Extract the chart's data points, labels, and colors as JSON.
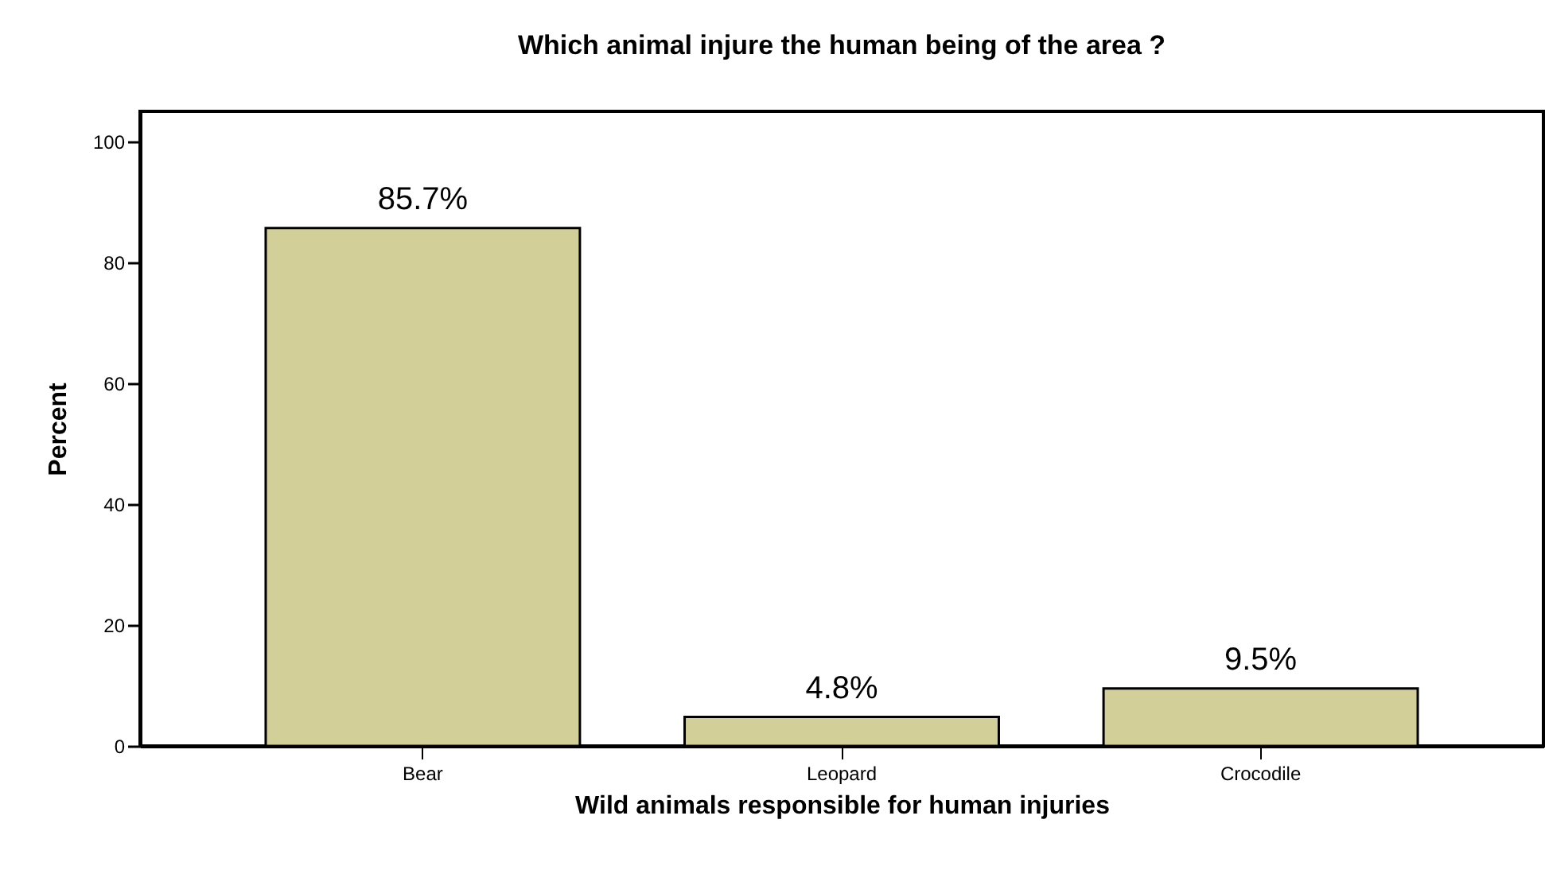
{
  "chart_data": {
    "type": "bar",
    "title": "Which animal injure the human being of the area ?",
    "xlabel": "Wild animals responsible for human injuries",
    "ylabel": "Percent",
    "categories": [
      "Bear",
      "Leopard",
      "Crocodile"
    ],
    "values": [
      85.7,
      4.8,
      9.5
    ],
    "value_labels": [
      "85.7%",
      "4.8%",
      "9.5%"
    ],
    "color": "#d3cf98",
    "ylim": [
      0,
      105
    ],
    "yticks": [
      0,
      20,
      40,
      60,
      80,
      100
    ],
    "grid": false
  }
}
